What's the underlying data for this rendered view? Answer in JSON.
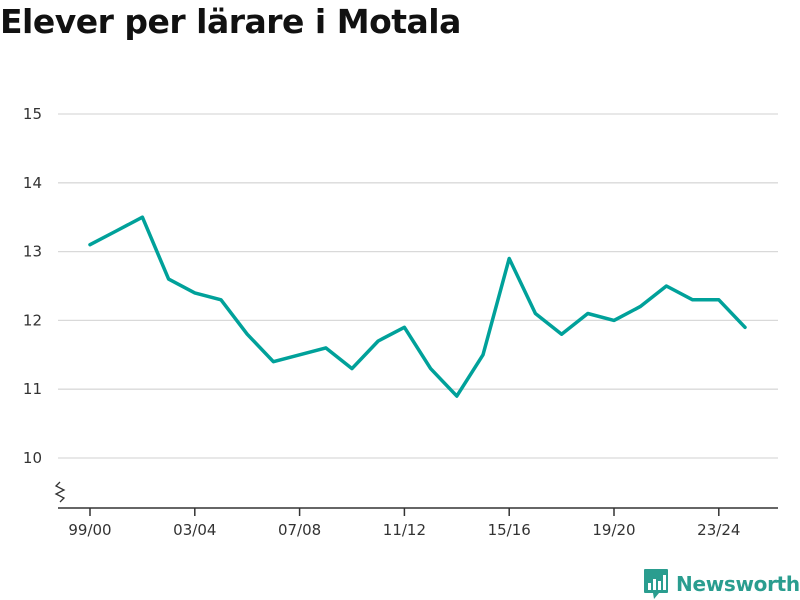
{
  "chart_data": {
    "type": "line",
    "title": "Elever per lärare i Motala",
    "xlabel": "",
    "ylabel": "",
    "categories": [
      "99/00",
      "00/01",
      "01/02",
      "02/03",
      "03/04",
      "04/05",
      "05/06",
      "06/07",
      "07/08",
      "08/09",
      "09/10",
      "10/11",
      "11/12",
      "12/13",
      "13/14",
      "14/15",
      "15/16",
      "16/17",
      "17/18",
      "18/19",
      "19/20",
      "20/21",
      "21/22",
      "22/23",
      "23/24",
      "24/25"
    ],
    "tick_labels": [
      "99/00",
      "03/04",
      "07/08",
      "11/12",
      "15/16",
      "19/20",
      "23/24"
    ],
    "yticks": [
      10,
      11,
      12,
      13,
      14,
      15
    ],
    "ylim": [
      9.3,
      15
    ],
    "y_axis_break": true,
    "grid": true,
    "series": [
      {
        "values": [
          13.1,
          13.3,
          13.5,
          12.6,
          12.4,
          12.3,
          11.8,
          11.4,
          11.5,
          11.6,
          11.3,
          11.7,
          11.9,
          11.3,
          10.9,
          11.5,
          12.9,
          12.1,
          11.8,
          12.1,
          12.0,
          12.2,
          12.5,
          12.3,
          12.3,
          11.9
        ]
      }
    ]
  },
  "colors": {
    "line": "#00a19a",
    "grid": "#d9d9d9",
    "axis": "#333333",
    "brand": "#2a9d8f"
  },
  "brand": {
    "name": "Newsworthy",
    "icon": "newsworthy-chart-icon"
  }
}
